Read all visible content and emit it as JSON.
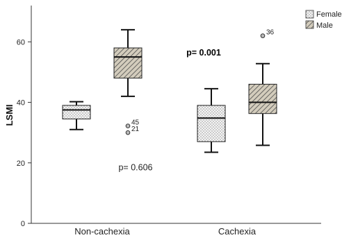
{
  "chart_data": {
    "type": "boxplot",
    "ylabel": "LSMI",
    "ylim": [
      0,
      72
    ],
    "yticks": [
      0,
      20,
      40,
      60
    ],
    "categories": [
      "Non-cachexia",
      "Cachexia"
    ],
    "series": [
      {
        "name": "Female",
        "color": "#f2f2f2",
        "pattern": "dots",
        "boxes": [
          {
            "category": "Non-cachexia",
            "whisker_low": 31,
            "q1": 34.5,
            "median": 37.5,
            "q3": 39,
            "whisker_high": 40.2,
            "outliers": []
          },
          {
            "category": "Cachexia",
            "whisker_low": 23.5,
            "q1": 27,
            "median": 34.8,
            "q3": 39,
            "whisker_high": 44.5,
            "outliers": []
          }
        ]
      },
      {
        "name": "Male",
        "color": "#c9c3b4",
        "pattern": "hatch",
        "boxes": [
          {
            "category": "Non-cachexia",
            "whisker_low": 42,
            "q1": 48,
            "median": 55,
            "q3": 58,
            "whisker_high": 64,
            "outliers": [
              {
                "value": 32.2,
                "label": "45"
              },
              {
                "value": 30,
                "label": "21"
              }
            ]
          },
          {
            "category": "Cachexia",
            "whisker_low": 25.8,
            "q1": 36.3,
            "median": 40,
            "q3": 46,
            "whisker_high": 52.8,
            "outliers": [
              {
                "value": 62,
                "label": "36"
              }
            ]
          }
        ]
      }
    ],
    "annotations": [
      {
        "text": "p= 0.606",
        "x": "Non-cachexia",
        "y": 17.5,
        "bold": false
      },
      {
        "text": "p= 0.001",
        "x": "Cachexia",
        "y": 55.5,
        "bold": true
      }
    ],
    "legend": {
      "position": "top-right"
    },
    "grid": false
  }
}
